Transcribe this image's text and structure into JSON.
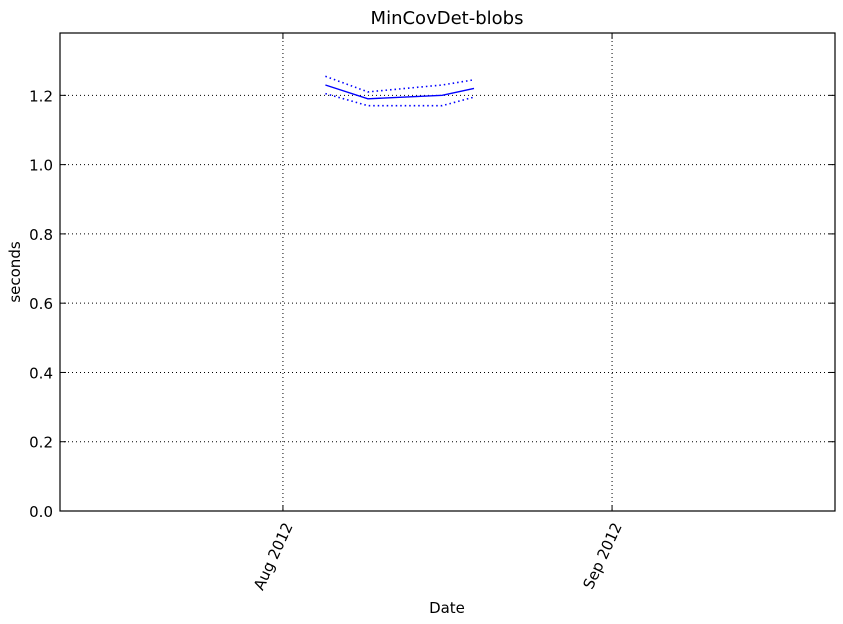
{
  "chart_data": {
    "type": "line",
    "title": "MinCovDet-blobs",
    "xlabel": "Date",
    "ylabel": "seconds",
    "grid": true,
    "x_range": [
      "2012-07-11",
      "2012-09-22"
    ],
    "x_ticks": [
      {
        "date": "2012-08-01",
        "label": "Aug 2012"
      },
      {
        "date": "2012-09-01",
        "label": "Sep 2012"
      }
    ],
    "ylim": [
      0.0,
      1.38
    ],
    "y_ticks": [
      {
        "value": 0.0,
        "label": "0.0"
      },
      {
        "value": 0.2,
        "label": "0.2"
      },
      {
        "value": 0.4,
        "label": "0.4"
      },
      {
        "value": 0.6,
        "label": "0.6"
      },
      {
        "value": 0.8,
        "label": "0.8"
      },
      {
        "value": 1.0,
        "label": "1.0"
      },
      {
        "value": 1.2,
        "label": "1.2"
      }
    ],
    "x": [
      "2012-08-05",
      "2012-08-09",
      "2012-08-16",
      "2012-08-19"
    ],
    "series": [
      {
        "style": "solid",
        "color": "#0000ff",
        "values": [
          1.23,
          1.19,
          1.2,
          1.22
        ]
      },
      {
        "style": "dotted",
        "color": "#0000ff",
        "values": [
          1.255,
          1.21,
          1.23,
          1.245
        ]
      },
      {
        "style": "dotted",
        "color": "#0000ff",
        "values": [
          1.205,
          1.17,
          1.17,
          1.195
        ]
      }
    ]
  }
}
